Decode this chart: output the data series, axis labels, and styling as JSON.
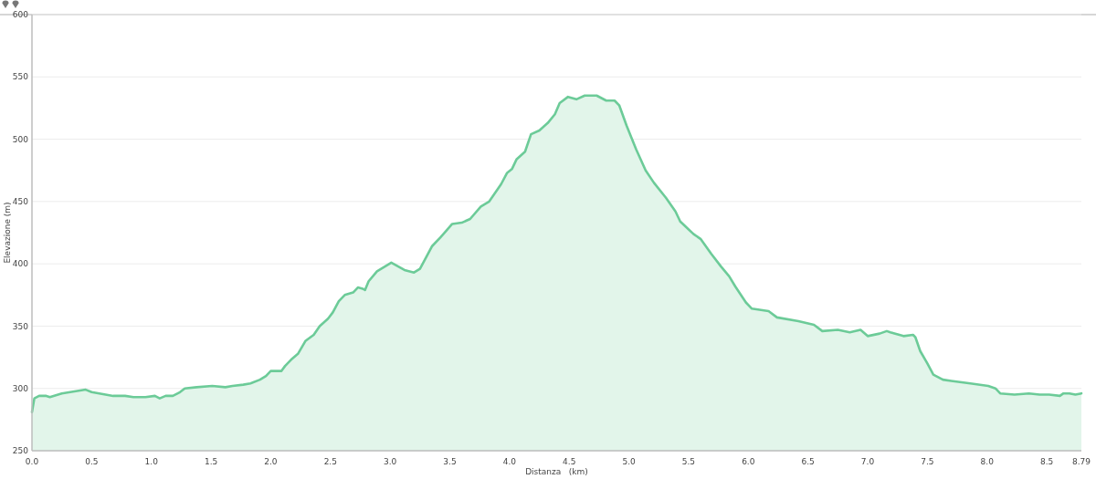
{
  "chart_data": {
    "type": "area",
    "xlabel": "Distanza   (km)",
    "ylabel": "Elevazione (m)",
    "color": "#6ccb98",
    "x": [
      0,
      0.02,
      0.06,
      0.12,
      0.15,
      0.25,
      0.32,
      0.45,
      0.5,
      0.68,
      0.78,
      0.85,
      0.95,
      1.03,
      1.07,
      1.12,
      1.18,
      1.24,
      1.28,
      1.38,
      1.51,
      1.62,
      1.68,
      1.77,
      1.83,
      1.91,
      1.96,
      2.0,
      2.09,
      2.12,
      2.17,
      2.23,
      2.29,
      2.36,
      2.41,
      2.48,
      2.52,
      2.57,
      2.62,
      2.69,
      2.73,
      2.77,
      2.79,
      2.82,
      2.89,
      3.01,
      3.12,
      3.2,
      3.25,
      3.35,
      3.42,
      3.52,
      3.6,
      3.67,
      3.76,
      3.83,
      3.93,
      3.98,
      4.02,
      4.06,
      4.13,
      4.18,
      4.25,
      4.32,
      4.38,
      4.42,
      4.49,
      4.56,
      4.63,
      4.73,
      4.81,
      4.88,
      4.92,
      4.98,
      5.06,
      5.14,
      5.21,
      5.31,
      5.39,
      5.43,
      5.54,
      5.6,
      5.69,
      5.77,
      5.84,
      5.89,
      5.98,
      6.03,
      6.17,
      6.24,
      6.42,
      6.55,
      6.62,
      6.75,
      6.85,
      6.94,
      7.0,
      7.1,
      7.16,
      7.19,
      7.3,
      7.38,
      7.4,
      7.44,
      7.5,
      7.55,
      7.63,
      7.7,
      7.86,
      8.01,
      8.07,
      8.11,
      8.23,
      8.35,
      8.44,
      8.52,
      8.61,
      8.64,
      8.69,
      8.74,
      8.79
    ],
    "values": [
      281,
      292,
      294,
      294,
      293,
      296,
      297,
      299,
      297,
      294,
      294,
      293,
      293,
      294,
      292,
      294,
      294,
      297,
      300,
      301,
      302,
      301,
      302,
      303,
      304,
      307,
      310,
      314,
      314,
      318,
      323,
      328,
      338,
      343,
      350,
      356,
      361,
      370,
      375,
      377,
      381,
      380,
      379,
      386,
      394,
      401,
      395,
      393,
      396,
      414,
      421,
      432,
      433,
      436,
      446,
      450,
      464,
      473,
      476,
      484,
      490,
      504,
      507,
      513,
      520,
      529,
      534,
      532,
      535,
      535,
      531,
      531,
      527,
      511,
      492,
      475,
      465,
      453,
      442,
      434,
      424,
      420,
      408,
      398,
      390,
      382,
      369,
      364,
      362,
      357,
      354,
      351,
      346,
      347,
      345,
      347,
      342,
      344,
      346,
      345,
      342,
      343,
      341,
      330,
      320,
      311,
      307,
      306,
      304,
      302,
      300,
      296,
      295,
      296,
      295,
      295,
      294,
      296,
      296,
      295,
      296
    ],
    "xlim": [
      0,
      8.79
    ],
    "ylim": [
      250,
      600
    ],
    "xticks": [
      {
        "value": 0,
        "label": "0.0"
      },
      0.5,
      {
        "value": 1,
        "label": "1.0"
      },
      1.5,
      {
        "value": 2,
        "label": "2.0"
      },
      2.5,
      {
        "value": 3,
        "label": "3.0"
      },
      3.5,
      {
        "value": 4,
        "label": "4.0"
      },
      4.5,
      {
        "value": 5,
        "label": "5.0"
      },
      5.5,
      {
        "value": 6,
        "label": "6.0"
      },
      6.5,
      {
        "value": 7,
        "label": "7.0"
      },
      7.5,
      {
        "value": 8,
        "label": "8.0"
      },
      8.5,
      8.79
    ],
    "yticks": [
      250,
      300,
      350,
      400,
      450,
      500,
      550,
      600
    ],
    "grid": "y"
  }
}
